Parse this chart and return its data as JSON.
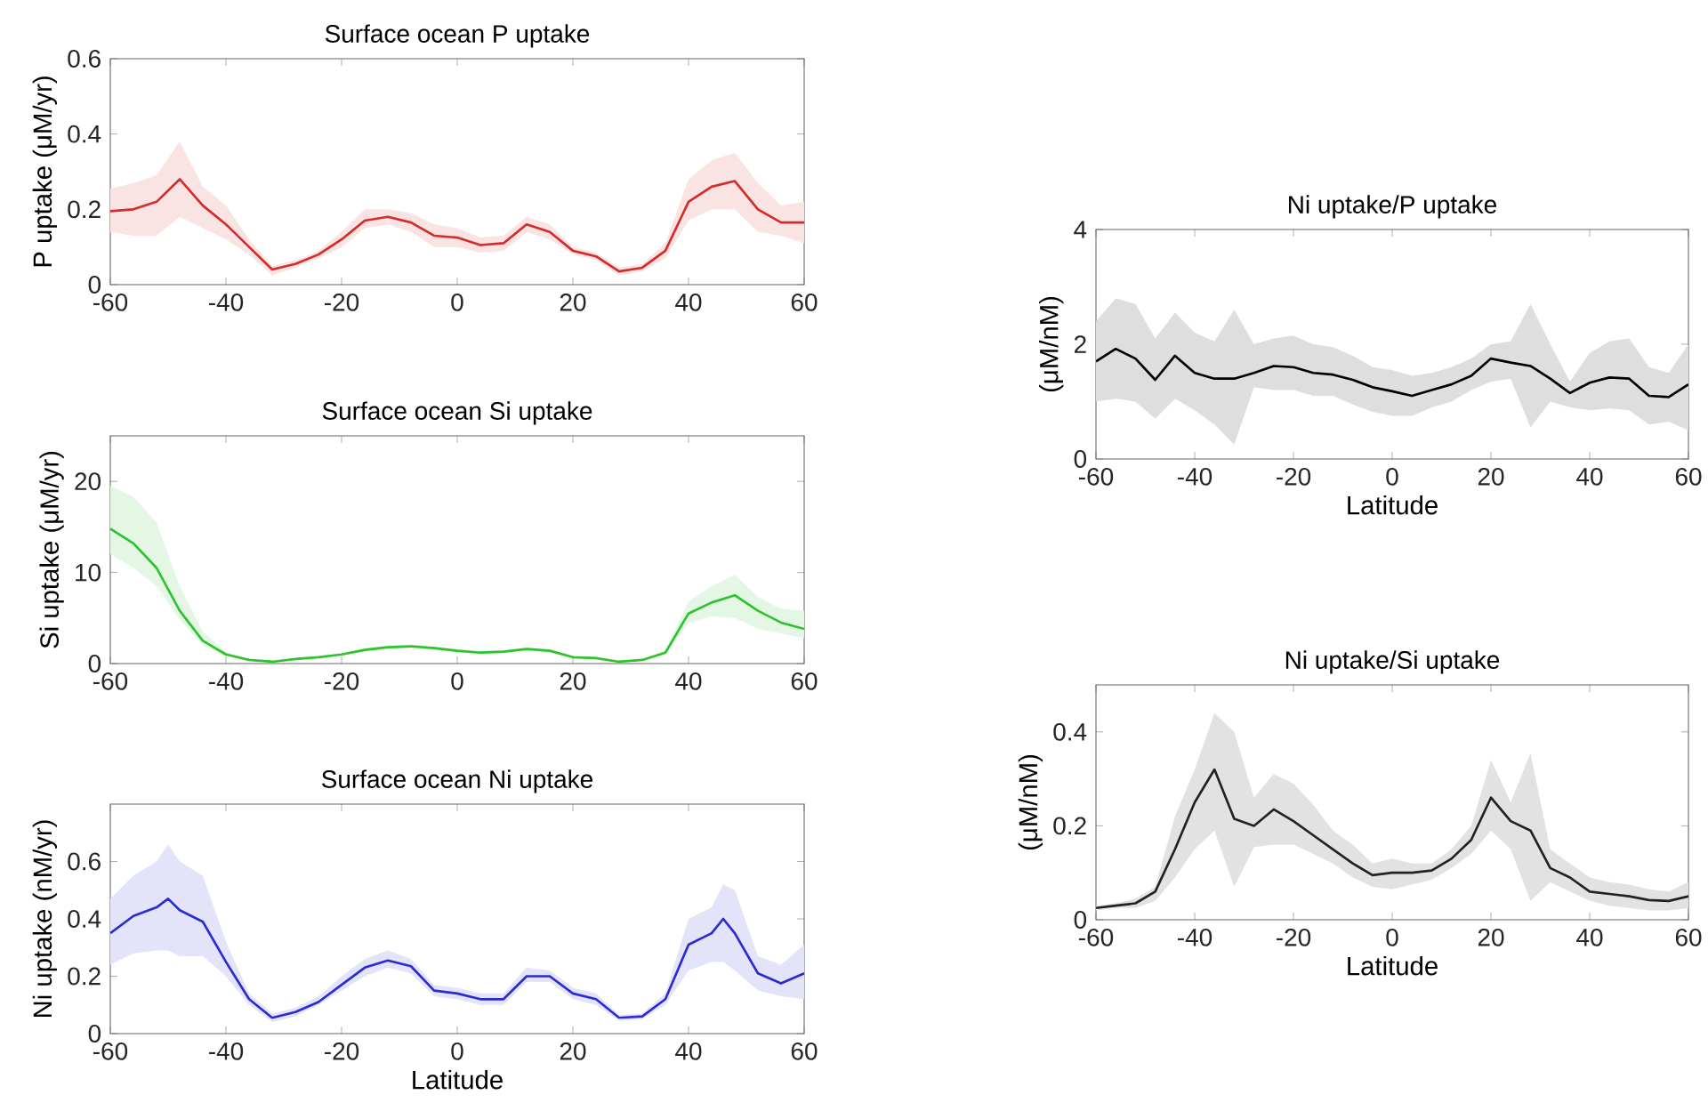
{
  "chart_data": [
    {
      "type": "line",
      "title": "Surface ocean P uptake",
      "ylabel": "P uptake (μM/yr)",
      "xlim": [
        -60,
        60
      ],
      "xticks": [
        -60,
        -40,
        -20,
        0,
        20,
        40,
        60
      ],
      "ylim": [
        0,
        0.6
      ],
      "yticks": [
        0,
        0.2,
        0.4,
        0.6
      ],
      "x": [
        -60,
        -56,
        -52,
        -48,
        -44,
        -40,
        -36,
        -32,
        -28,
        -24,
        -20,
        -16,
        -12,
        -8,
        -4,
        0,
        4,
        8,
        12,
        16,
        20,
        24,
        28,
        32,
        36,
        40,
        44,
        48,
        52,
        56,
        60
      ],
      "series": [
        {
          "color": "#d42b2b",
          "values": [
            0.195,
            0.2,
            0.22,
            0.28,
            0.21,
            0.16,
            0.1,
            0.04,
            0.055,
            0.08,
            0.12,
            0.17,
            0.18,
            0.165,
            0.13,
            0.125,
            0.105,
            0.11,
            0.16,
            0.14,
            0.09,
            0.075,
            0.035,
            0.045,
            0.09,
            0.22,
            0.26,
            0.275,
            0.2,
            0.165,
            0.165
          ],
          "lower": [
            0.14,
            0.13,
            0.13,
            0.18,
            0.15,
            0.12,
            0.08,
            0.025,
            0.045,
            0.07,
            0.1,
            0.15,
            0.16,
            0.14,
            0.1,
            0.1,
            0.085,
            0.09,
            0.14,
            0.12,
            0.08,
            0.065,
            0.025,
            0.035,
            0.07,
            0.17,
            0.2,
            0.2,
            0.14,
            0.13,
            0.11
          ],
          "upper": [
            0.255,
            0.27,
            0.29,
            0.38,
            0.26,
            0.21,
            0.12,
            0.05,
            0.065,
            0.09,
            0.14,
            0.2,
            0.2,
            0.19,
            0.16,
            0.15,
            0.125,
            0.13,
            0.18,
            0.16,
            0.1,
            0.085,
            0.045,
            0.055,
            0.11,
            0.28,
            0.33,
            0.35,
            0.27,
            0.21,
            0.22
          ]
        }
      ]
    },
    {
      "type": "line",
      "title": "Surface ocean Si uptake",
      "ylabel": "Si uptake (μM/yr)",
      "xlim": [
        -60,
        60
      ],
      "xticks": [
        -60,
        -40,
        -20,
        0,
        20,
        40,
        60
      ],
      "ylim": [
        0,
        25
      ],
      "yticks": [
        0,
        10,
        20
      ],
      "x": [
        -60,
        -56,
        -52,
        -48,
        -44,
        -40,
        -36,
        -32,
        -28,
        -24,
        -20,
        -16,
        -12,
        -8,
        -4,
        0,
        4,
        8,
        12,
        16,
        20,
        24,
        28,
        32,
        36,
        40,
        44,
        48,
        52,
        56,
        60
      ],
      "series": [
        {
          "color": "#2ec22e",
          "values": [
            14.8,
            13.2,
            10.5,
            5.8,
            2.5,
            1.0,
            0.4,
            0.2,
            0.5,
            0.7,
            1.0,
            1.5,
            1.8,
            1.9,
            1.7,
            1.4,
            1.2,
            1.3,
            1.6,
            1.4,
            0.7,
            0.6,
            0.2,
            0.4,
            1.2,
            5.5,
            6.7,
            7.5,
            5.8,
            4.5,
            3.8
          ],
          "lower": [
            12,
            10.5,
            8.5,
            4.8,
            2.0,
            0.8,
            0.3,
            0.15,
            0.4,
            0.6,
            0.9,
            1.3,
            1.6,
            1.7,
            1.5,
            1.2,
            1.0,
            1.1,
            1.4,
            1.2,
            0.6,
            0.5,
            0.15,
            0.3,
            1.0,
            4.5,
            5.2,
            5.0,
            3.8,
            3.3,
            2.8
          ],
          "upper": [
            19.5,
            18.3,
            15.5,
            8.5,
            3.5,
            1.3,
            0.5,
            0.25,
            0.6,
            0.8,
            1.1,
            1.7,
            2.0,
            2.1,
            1.9,
            1.6,
            1.4,
            1.5,
            1.8,
            1.6,
            0.8,
            0.7,
            0.25,
            0.5,
            1.5,
            6.8,
            8.5,
            9.8,
            7.3,
            6.0,
            5.8
          ]
        }
      ]
    },
    {
      "type": "line",
      "title": "Surface ocean Ni uptake",
      "xlabel": "Latitude",
      "ylabel": "Ni uptake (nM/yr)",
      "xlim": [
        -60,
        60
      ],
      "xticks": [
        -60,
        -40,
        -20,
        0,
        20,
        40,
        60
      ],
      "ylim": [
        0,
        0.8
      ],
      "yticks": [
        0,
        0.2,
        0.4,
        0.6
      ],
      "x": [
        -60,
        -56,
        -52,
        -50,
        -48,
        -44,
        -40,
        -36,
        -32,
        -28,
        -24,
        -20,
        -16,
        -12,
        -8,
        -4,
        0,
        4,
        8,
        12,
        16,
        20,
        24,
        28,
        32,
        36,
        40,
        44,
        46,
        48,
        52,
        56,
        60
      ],
      "series": [
        {
          "color": "#2b2bd4",
          "values": [
            0.35,
            0.41,
            0.44,
            0.47,
            0.43,
            0.39,
            0.25,
            0.12,
            0.055,
            0.075,
            0.11,
            0.17,
            0.23,
            0.255,
            0.235,
            0.15,
            0.14,
            0.12,
            0.12,
            0.2,
            0.2,
            0.14,
            0.12,
            0.055,
            0.06,
            0.12,
            0.31,
            0.35,
            0.4,
            0.35,
            0.21,
            0.175,
            0.21
          ],
          "lower": [
            0.24,
            0.28,
            0.29,
            0.29,
            0.27,
            0.27,
            0.2,
            0.1,
            0.04,
            0.06,
            0.1,
            0.15,
            0.2,
            0.23,
            0.21,
            0.13,
            0.12,
            0.1,
            0.1,
            0.18,
            0.18,
            0.12,
            0.1,
            0.045,
            0.05,
            0.1,
            0.22,
            0.25,
            0.25,
            0.22,
            0.15,
            0.13,
            0.12
          ],
          "upper": [
            0.47,
            0.55,
            0.6,
            0.66,
            0.6,
            0.55,
            0.32,
            0.14,
            0.07,
            0.09,
            0.13,
            0.2,
            0.26,
            0.29,
            0.26,
            0.17,
            0.16,
            0.14,
            0.14,
            0.23,
            0.22,
            0.16,
            0.14,
            0.065,
            0.07,
            0.14,
            0.4,
            0.44,
            0.52,
            0.5,
            0.27,
            0.24,
            0.31
          ]
        }
      ]
    },
    {
      "type": "line",
      "title": "Ni uptake/P uptake",
      "xlabel": "Latitude",
      "ylabel": "(μM/nM)",
      "xlim": [
        -60,
        60
      ],
      "xticks": [
        -60,
        -40,
        -20,
        0,
        20,
        40,
        60
      ],
      "ylim": [
        0,
        4
      ],
      "yticks": [
        0,
        2,
        4
      ],
      "x": [
        -60,
        -56,
        -52,
        -48,
        -44,
        -40,
        -36,
        -32,
        -28,
        -24,
        -20,
        -16,
        -12,
        -8,
        -4,
        0,
        4,
        8,
        12,
        16,
        20,
        24,
        28,
        32,
        36,
        40,
        44,
        48,
        52,
        56,
        60
      ],
      "series": [
        {
          "color": "#000000",
          "values": [
            1.7,
            1.92,
            1.75,
            1.38,
            1.8,
            1.5,
            1.4,
            1.4,
            1.5,
            1.62,
            1.6,
            1.5,
            1.47,
            1.38,
            1.25,
            1.18,
            1.1,
            1.2,
            1.3,
            1.45,
            1.75,
            1.68,
            1.62,
            1.4,
            1.15,
            1.33,
            1.42,
            1.4,
            1.1,
            1.08,
            1.3
          ],
          "lower": [
            1.0,
            1.05,
            1.0,
            0.7,
            1.05,
            0.85,
            0.6,
            0.25,
            1.25,
            1.2,
            1.2,
            1.1,
            1.1,
            0.95,
            0.82,
            0.75,
            0.75,
            0.9,
            1.0,
            1.2,
            1.35,
            1.4,
            0.55,
            1.0,
            0.9,
            0.85,
            0.88,
            0.85,
            0.6,
            0.65,
            0.5
          ],
          "upper": [
            2.4,
            2.8,
            2.7,
            2.1,
            2.55,
            2.2,
            2.05,
            2.6,
            2.0,
            2.1,
            2.15,
            2.0,
            1.95,
            1.8,
            1.6,
            1.55,
            1.45,
            1.5,
            1.6,
            1.75,
            2.0,
            2.05,
            2.7,
            2.0,
            1.35,
            1.85,
            2.05,
            2.1,
            1.6,
            1.5,
            2.0
          ]
        }
      ]
    },
    {
      "type": "line",
      "title": "Ni uptake/Si uptake",
      "xlabel": "Latitude",
      "ylabel": "(μM/nM)",
      "xlim": [
        -60,
        60
      ],
      "xticks": [
        -60,
        -40,
        -20,
        0,
        20,
        40,
        60
      ],
      "ylim": [
        0,
        0.5
      ],
      "yticks": [
        0,
        0.2,
        0.4
      ],
      "x": [
        -60,
        -56,
        -52,
        -48,
        -44,
        -40,
        -36,
        -32,
        -28,
        -24,
        -20,
        -16,
        -12,
        -8,
        -4,
        0,
        4,
        8,
        12,
        16,
        20,
        24,
        28,
        32,
        36,
        40,
        44,
        48,
        52,
        56,
        60
      ],
      "series": [
        {
          "color": "#222222",
          "values": [
            0.025,
            0.03,
            0.035,
            0.06,
            0.15,
            0.25,
            0.32,
            0.215,
            0.2,
            0.235,
            0.21,
            0.18,
            0.15,
            0.12,
            0.095,
            0.1,
            0.1,
            0.105,
            0.13,
            0.17,
            0.26,
            0.21,
            0.19,
            0.11,
            0.09,
            0.06,
            0.055,
            0.05,
            0.042,
            0.04,
            0.05
          ],
          "lower": [
            0.02,
            0.025,
            0.025,
            0.04,
            0.09,
            0.15,
            0.19,
            0.07,
            0.155,
            0.16,
            0.16,
            0.14,
            0.12,
            0.09,
            0.07,
            0.065,
            0.075,
            0.085,
            0.11,
            0.14,
            0.19,
            0.15,
            0.04,
            0.08,
            0.06,
            0.04,
            0.03,
            0.025,
            0.02,
            0.02,
            0.025
          ],
          "upper": [
            0.03,
            0.035,
            0.045,
            0.07,
            0.22,
            0.32,
            0.44,
            0.4,
            0.26,
            0.31,
            0.29,
            0.245,
            0.19,
            0.16,
            0.12,
            0.13,
            0.12,
            0.12,
            0.15,
            0.2,
            0.34,
            0.25,
            0.355,
            0.15,
            0.12,
            0.09,
            0.08,
            0.075,
            0.065,
            0.06,
            0.08
          ]
        }
      ]
    }
  ]
}
